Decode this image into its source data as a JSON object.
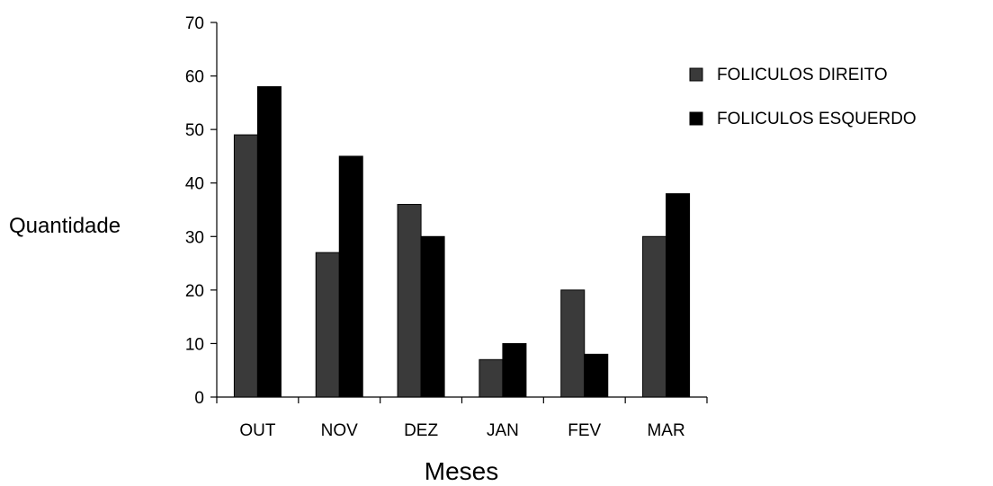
{
  "chart_data": {
    "type": "bar",
    "title": "",
    "xlabel": "Meses",
    "ylabel": "Quantidade",
    "categories": [
      "OUT",
      "NOV",
      "DEZ",
      "JAN",
      "FEV",
      "MAR"
    ],
    "series": [
      {
        "name": "FOLICULOS DIREITO",
        "values": [
          49,
          27,
          36,
          7,
          20,
          30
        ],
        "color": "#3a3a3a"
      },
      {
        "name": "FOLICULOS ESQUERDO",
        "values": [
          58,
          45,
          30,
          10,
          8,
          38
        ],
        "color": "#000000"
      }
    ],
    "ylim": [
      0,
      70
    ],
    "yticks": [
      0,
      10,
      20,
      30,
      40,
      50,
      60,
      70
    ],
    "grid": false,
    "legend": "right"
  }
}
